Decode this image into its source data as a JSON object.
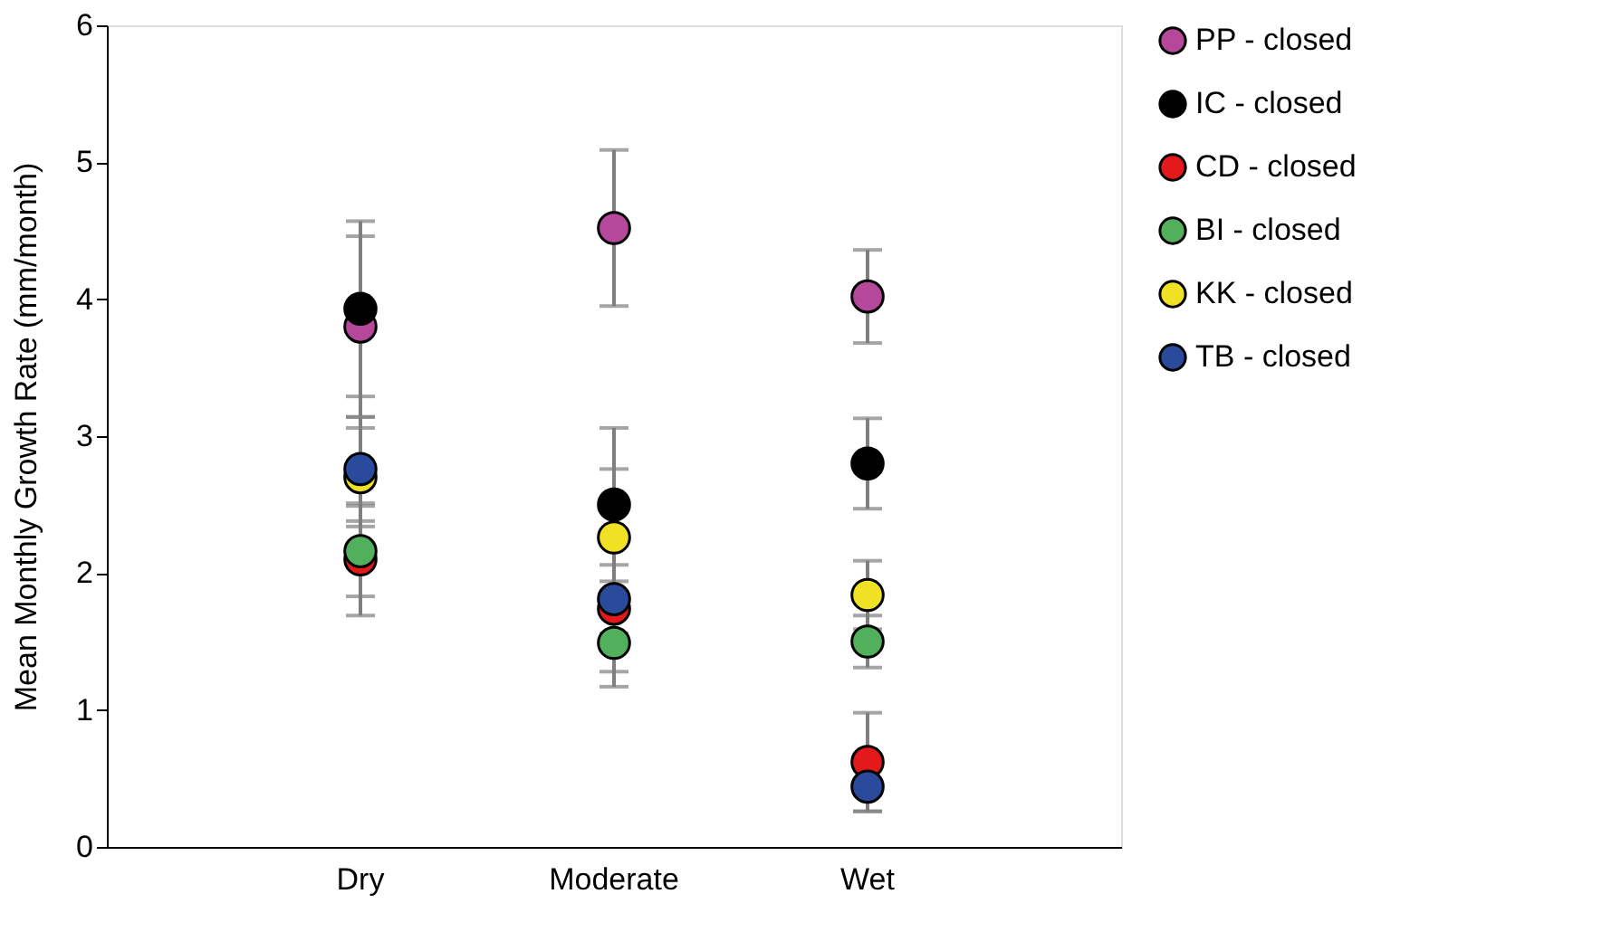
{
  "chart_data": {
    "type": "scatter",
    "ylabel": "Mean Monthly Growth Rate (mm/month)",
    "categories": [
      "Dry",
      "Moderate",
      "Wet"
    ],
    "ylim": [
      0,
      6
    ],
    "yticks": [
      0,
      1,
      2,
      3,
      4,
      5,
      6
    ],
    "grid": false,
    "legend": "right",
    "marker": "circle",
    "series": [
      {
        "name": "PP - closed",
        "color": "#b5489a",
        "x": [
          "Dry",
          "Moderate",
          "Wet"
        ],
        "values": [
          3.8,
          4.52,
          4.02
        ],
        "errors": [
          0.66,
          0.57,
          0.34
        ]
      },
      {
        "name": "IC - closed",
        "color": "#000000",
        "x": [
          "Dry",
          "Moderate",
          "Wet"
        ],
        "values": [
          3.93,
          2.5,
          2.8
        ],
        "errors": [
          0.64,
          0.56,
          0.33
        ]
      },
      {
        "name": "CD - closed",
        "color": "#e3191c",
        "x": [
          "Dry",
          "Moderate",
          "Wet"
        ],
        "values": [
          2.1,
          1.74,
          0.62
        ],
        "errors": [
          0.41,
          0.46,
          0.36
        ]
      },
      {
        "name": "BI - closed",
        "color": "#52b05d",
        "x": [
          "Dry",
          "Moderate",
          "Wet"
        ],
        "values": [
          2.16,
          1.49,
          1.5
        ],
        "errors": [
          0.33,
          0.32,
          0.19
        ]
      },
      {
        "name": "KK - closed",
        "color": "#f0e125",
        "x": [
          "Dry",
          "Moderate",
          "Wet"
        ],
        "values": [
          2.7,
          2.26,
          1.84
        ],
        "errors": [
          0.36,
          0.5,
          0.25
        ]
      },
      {
        "name": "TB - closed",
        "color": "#2a4b9b",
        "x": [
          "Dry",
          "Moderate",
          "Wet"
        ],
        "values": [
          2.76,
          1.81,
          0.44
        ],
        "errors": [
          0.38,
          0.25,
          0.18
        ]
      }
    ]
  }
}
